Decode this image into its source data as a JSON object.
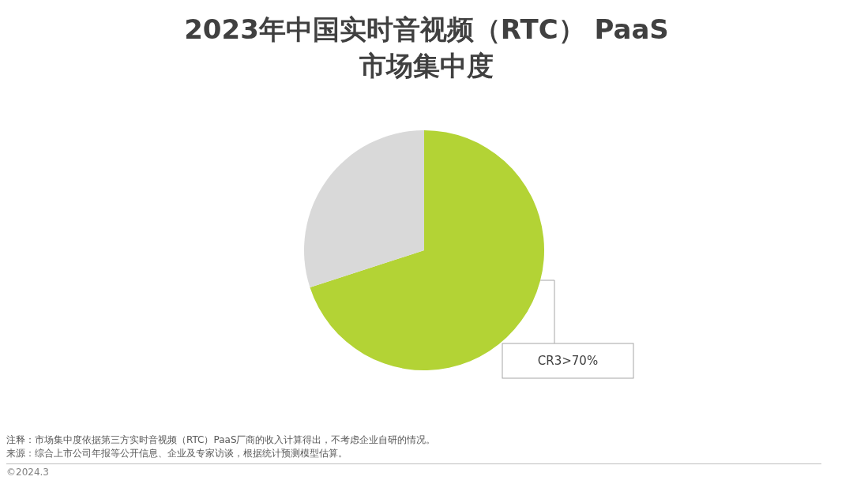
{
  "chart_data": {
    "type": "pie",
    "title": "2023年中国实时音视频（RTC） PaaS\n市场集中度",
    "categories": [
      "CR3>70%",
      null
    ],
    "values": [
      70,
      30
    ],
    "colors": [
      "#b3d335",
      "#d9d9d9"
    ],
    "legend": false,
    "annotations": [
      "注释：市场集中度依据第三方实时音视频（RTC）PaaS厂商的收入计算得出，不考虑企业自研的情况。",
      "来源：综合上市公司年报等公开信息、企业及专家访谈，根据统计预测模型估算。",
      "©2024.3"
    ]
  }
}
